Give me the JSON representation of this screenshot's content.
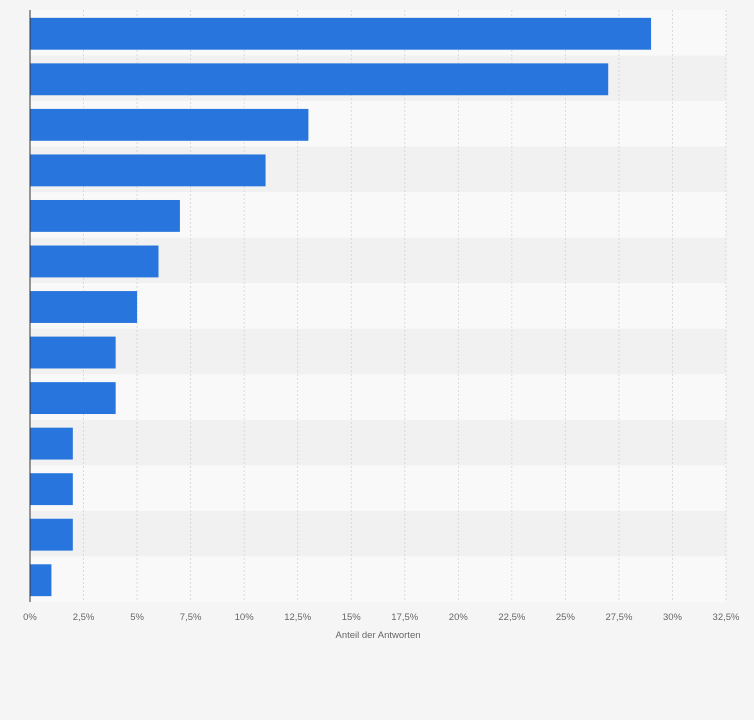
{
  "chart_data": {
    "type": "bar",
    "orientation": "horizontal",
    "categories": [
      "",
      "",
      "",
      "",
      "",
      "",
      "",
      "",
      "",
      "",
      "",
      "",
      ""
    ],
    "values": [
      29,
      27,
      13,
      11,
      7,
      6,
      5,
      4,
      4,
      2,
      2,
      2,
      1
    ],
    "xlabel": "Anteil der Antworten",
    "ylabel": "",
    "xlim": [
      0,
      32.5
    ],
    "xticks": [
      0,
      2.5,
      5,
      7.5,
      10,
      12.5,
      15,
      17.5,
      20,
      22.5,
      25,
      27.5,
      30,
      32.5
    ],
    "xtick_labels": [
      "0%",
      "2,5%",
      "5%",
      "7,5%",
      "10%",
      "12,5%",
      "15%",
      "17,5%",
      "20%",
      "22,5%",
      "25%",
      "27,5%",
      "30%",
      "32,5%"
    ],
    "grid": true,
    "legend": "none",
    "colors": {
      "bar": "#2876dd",
      "plot_background_light": "#f9f9f9",
      "plot_background_band": "#f1f1f1",
      "page_background": "#f5f5f5",
      "gridline": "#d3d3d3",
      "axis_line": "#333333",
      "text": "#666666"
    }
  }
}
